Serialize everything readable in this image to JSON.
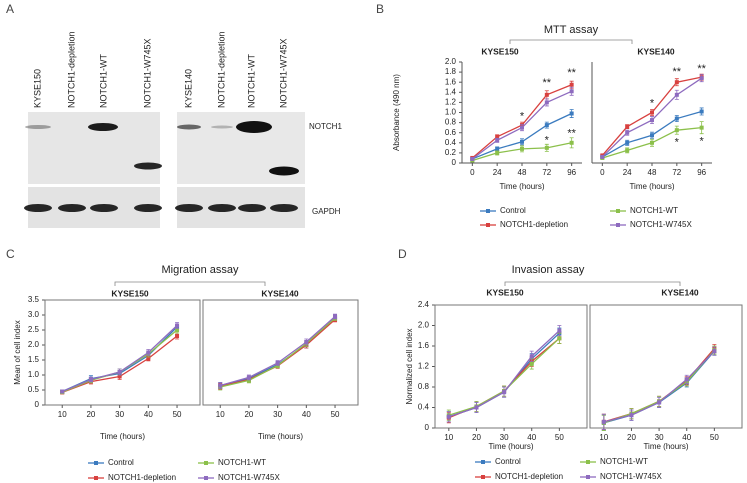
{
  "blot": {
    "label": "A",
    "lanes_left": [
      "KYSE150",
      "NOTCH1-depletion",
      "NOTCH1-WT",
      "NOTCH1-W745X"
    ],
    "lanes_right": [
      "KYSE140",
      "NOTCH1-depletion",
      "NOTCH1-WT",
      "NOTCH1-W745X"
    ],
    "rows": [
      "NOTCH1",
      "GAPDH"
    ]
  },
  "chart_data": [
    {
      "type": "line",
      "label": "B",
      "title": "MTT assay",
      "xlabel": "Time (hours)",
      "ylabel": "Absorbance (490 nm)",
      "x": [
        0,
        24,
        48,
        72,
        96
      ],
      "xlim": [
        -10,
        106
      ],
      "xticks": [
        0,
        24,
        48,
        72,
        96
      ],
      "ylim": [
        0,
        2
      ],
      "yticks": [
        0,
        0.2,
        0.4,
        0.6,
        0.8,
        {
          "value": 1,
          "label": "1.0"
        },
        1.2,
        1.4,
        1.6,
        1.8,
        {
          "value": 2,
          "label": "2.0"
        }
      ],
      "legend": [
        {
          "name": "Control",
          "color": "#3b7bbf"
        },
        {
          "name": "NOTCH1-depletion",
          "color": "#d8413f"
        },
        {
          "name": "NOTCH1-WT",
          "color": "#8cc04b"
        },
        {
          "name": "NOTCH1-W745X",
          "color": "#8e6bbf"
        }
      ],
      "panels": [
        {
          "subtitle": "KYSE150",
          "series": [
            {
              "values": [
                0.08,
                0.28,
                0.42,
                0.75,
                0.98
              ],
              "errors": [
                0.02,
                0.04,
                0.06,
                0.06,
                0.08
              ]
            },
            {
              "values": [
                0.1,
                0.52,
                0.75,
                1.35,
                1.55
              ],
              "errors": [
                0.02,
                0.04,
                0.06,
                0.08,
                0.07
              ]
            },
            {
              "values": [
                0.05,
                0.2,
                0.28,
                0.3,
                0.4
              ],
              "errors": [
                0.02,
                0.04,
                0.06,
                0.07,
                0.1
              ]
            },
            {
              "values": [
                0.08,
                0.45,
                0.7,
                1.2,
                1.42
              ],
              "errors": [
                0.02,
                0.04,
                0.06,
                0.07,
                0.08
              ]
            }
          ],
          "annotations": [
            {
              "x": 48,
              "y": 0.92,
              "text": "*"
            },
            {
              "x": 72,
              "y": 1.58,
              "text": "**"
            },
            {
              "x": 96,
              "y": 1.78,
              "text": "**"
            },
            {
              "x": 72,
              "y": 0.44,
              "text": "*"
            },
            {
              "x": 96,
              "y": 0.58,
              "text": "**"
            }
          ]
        },
        {
          "subtitle": "KYSE140",
          "series": [
            {
              "values": [
                0.12,
                0.4,
                0.55,
                0.88,
                1.02
              ],
              "errors": [
                0.02,
                0.05,
                0.06,
                0.06,
                0.07
              ]
            },
            {
              "values": [
                0.15,
                0.72,
                1.0,
                1.6,
                1.7
              ],
              "errors": [
                0.02,
                0.04,
                0.06,
                0.07,
                0.06
              ]
            },
            {
              "values": [
                0.1,
                0.25,
                0.4,
                0.65,
                0.7
              ],
              "errors": [
                0.02,
                0.05,
                0.07,
                0.08,
                0.12
              ]
            },
            {
              "values": [
                0.12,
                0.6,
                0.85,
                1.35,
                1.68
              ],
              "errors": [
                0.02,
                0.05,
                0.07,
                0.09,
                0.07
              ]
            }
          ],
          "annotations": [
            {
              "x": 48,
              "y": 1.18,
              "text": "*"
            },
            {
              "x": 72,
              "y": 1.8,
              "text": "**"
            },
            {
              "x": 96,
              "y": 1.86,
              "text": "**"
            },
            {
              "x": 72,
              "y": 0.4,
              "text": "*"
            },
            {
              "x": 96,
              "y": 0.42,
              "text": "*"
            }
          ]
        }
      ]
    },
    {
      "type": "line",
      "label": "C",
      "title": "Migration assay",
      "xlabel": "Time (hours)",
      "ylabel": "Mean of cell index",
      "x": [
        10,
        20,
        30,
        40,
        50
      ],
      "xlim": [
        4,
        58
      ],
      "xticks": [
        10,
        20,
        30,
        40,
        50
      ],
      "ylim": [
        0,
        3.5
      ],
      "yticks": [
        0,
        0.5,
        {
          "value": 1,
          "label": "1.0"
        },
        1.5,
        {
          "value": 2,
          "label": "2.0"
        },
        2.5,
        {
          "value": 3,
          "label": "3.0"
        },
        3.5
      ],
      "legend": [
        {
          "name": "Control",
          "color": "#3b7bbf"
        },
        {
          "name": "NOTCH1-depletion",
          "color": "#d8413f"
        },
        {
          "name": "NOTCH1-WT",
          "color": "#8cc04b"
        },
        {
          "name": "NOTCH1-W745X",
          "color": "#8e6bbf"
        }
      ],
      "panels": [
        {
          "subtitle": "KYSE150",
          "series": [
            {
              "values": [
                0.45,
                0.88,
                1.05,
                1.65,
                2.6
              ],
              "errors": [
                0.05,
                0.1,
                0.1,
                0.1,
                0.1
              ]
            },
            {
              "values": [
                0.42,
                0.78,
                0.95,
                1.55,
                2.3
              ],
              "errors": [
                0.05,
                0.08,
                0.1,
                0.08,
                0.1
              ]
            },
            {
              "values": [
                0.43,
                0.82,
                1.1,
                1.7,
                2.5
              ],
              "errors": [
                0.05,
                0.08,
                0.1,
                0.1,
                0.1
              ]
            },
            {
              "values": [
                0.45,
                0.85,
                1.1,
                1.75,
                2.65
              ],
              "errors": [
                0.05,
                0.08,
                0.1,
                0.1,
                0.1
              ]
            }
          ]
        },
        {
          "subtitle": "KYSE140",
          "series": [
            {
              "values": [
                0.65,
                0.88,
                1.35,
                2.0,
                2.9
              ],
              "errors": [
                0.1,
                0.08,
                0.08,
                0.1,
                0.08
              ]
            },
            {
              "values": [
                0.62,
                0.85,
                1.3,
                2.0,
                2.85
              ],
              "errors": [
                0.1,
                0.08,
                0.08,
                0.1,
                0.08
              ]
            },
            {
              "values": [
                0.6,
                0.82,
                1.32,
                2.05,
                2.9
              ],
              "errors": [
                0.1,
                0.08,
                0.08,
                0.1,
                0.08
              ]
            },
            {
              "values": [
                0.65,
                0.92,
                1.4,
                2.1,
                2.95
              ],
              "errors": [
                0.1,
                0.08,
                0.08,
                0.1,
                0.08
              ]
            }
          ]
        }
      ]
    },
    {
      "type": "line",
      "label": "D",
      "title": "Invasion assay",
      "xlabel": "Time (hours)",
      "ylabel": "Normalized cell index",
      "x": [
        10,
        20,
        30,
        40,
        50
      ],
      "xlim": [
        5,
        60
      ],
      "xticks": [
        10,
        20,
        30,
        40,
        50
      ],
      "ylim": [
        0,
        2.4
      ],
      "yticks": [
        0,
        0.4,
        0.8,
        1.2,
        1.6,
        {
          "value": 2,
          "label": "2.0"
        },
        2.4
      ],
      "legend": [
        {
          "name": "Control",
          "color": "#3b7bbf"
        },
        {
          "name": "NOTCH1-depletion",
          "color": "#d8413f"
        },
        {
          "name": "NOTCH1-WT",
          "color": "#8cc04b"
        },
        {
          "name": "NOTCH1-W745X",
          "color": "#8e6bbf"
        }
      ],
      "panels": [
        {
          "subtitle": "KYSE150",
          "series": [
            {
              "values": [
                0.22,
                0.4,
                0.7,
                1.35,
                1.85
              ],
              "errors": [
                0.1,
                0.1,
                0.1,
                0.1,
                0.1
              ]
            },
            {
              "values": [
                0.2,
                0.42,
                0.72,
                1.3,
                1.75
              ],
              "errors": [
                0.1,
                0.1,
                0.1,
                0.1,
                0.1
              ]
            },
            {
              "values": [
                0.25,
                0.42,
                0.72,
                1.25,
                1.75
              ],
              "errors": [
                0.1,
                0.1,
                0.1,
                0.1,
                0.1
              ]
            },
            {
              "values": [
                0.22,
                0.4,
                0.7,
                1.4,
                1.9
              ],
              "errors": [
                0.1,
                0.1,
                0.1,
                0.1,
                0.1
              ]
            }
          ]
        },
        {
          "subtitle": "KYSE140",
          "series": [
            {
              "values": [
                0.1,
                0.25,
                0.5,
                0.88,
                1.5
              ],
              "errors": [
                0.15,
                0.1,
                0.1,
                0.08,
                0.08
              ]
            },
            {
              "values": [
                0.12,
                0.28,
                0.52,
                0.92,
                1.55
              ],
              "errors": [
                0.15,
                0.1,
                0.1,
                0.08,
                0.08
              ]
            },
            {
              "values": [
                0.1,
                0.28,
                0.52,
                0.9,
                1.52
              ],
              "errors": [
                0.15,
                0.1,
                0.1,
                0.08,
                0.08
              ]
            },
            {
              "values": [
                0.12,
                0.25,
                0.5,
                0.95,
                1.5
              ],
              "errors": [
                0.15,
                0.1,
                0.1,
                0.08,
                0.08
              ]
            }
          ]
        }
      ]
    }
  ]
}
